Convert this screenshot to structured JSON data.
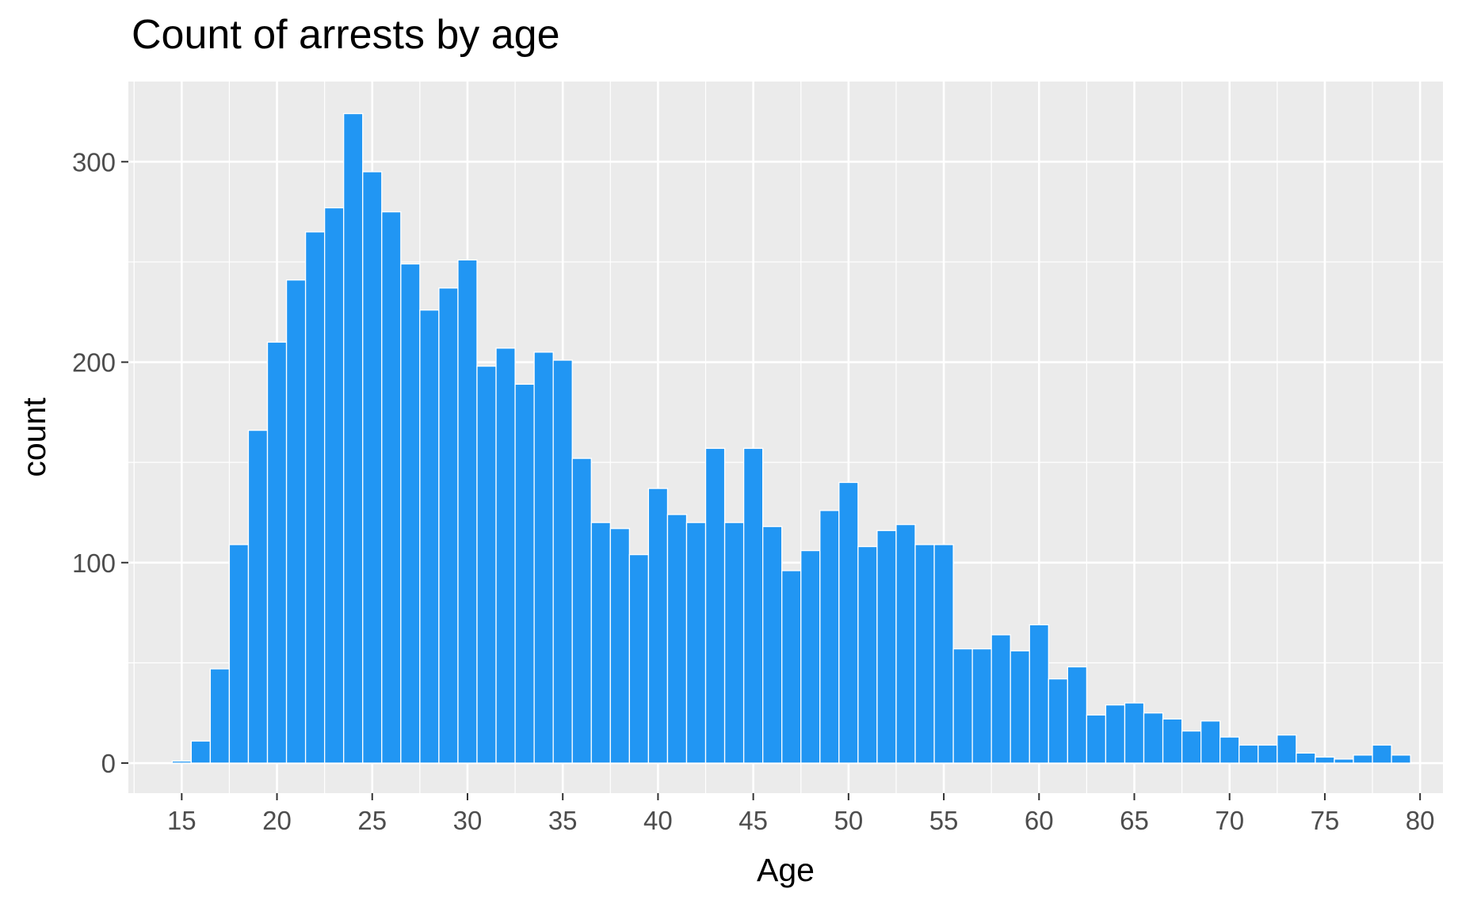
{
  "chart_data": {
    "type": "bar",
    "title": "Count of arrests by age",
    "xlabel": "Age",
    "ylabel": "count",
    "bar_color": "#2196F3",
    "panel_color": "#EBEBEB",
    "grid_color": "#FFFFFF",
    "grid": true,
    "xlim": [
      12.2,
      81.2
    ],
    "ylim": [
      -15,
      340
    ],
    "x_ticks": [
      15,
      20,
      25,
      30,
      35,
      40,
      45,
      50,
      55,
      60,
      65,
      70,
      75,
      80
    ],
    "y_ticks": [
      0,
      100,
      200,
      300
    ],
    "x": [
      15,
      16,
      17,
      18,
      19,
      20,
      21,
      22,
      23,
      24,
      25,
      26,
      27,
      28,
      29,
      30,
      31,
      32,
      33,
      34,
      35,
      36,
      37,
      38,
      39,
      40,
      41,
      42,
      43,
      44,
      45,
      46,
      47,
      48,
      49,
      50,
      51,
      52,
      53,
      54,
      55,
      56,
      57,
      58,
      59,
      60,
      61,
      62,
      63,
      64,
      65,
      66,
      67,
      68,
      69,
      70,
      71,
      72,
      73,
      74,
      75,
      76,
      77,
      78,
      79
    ],
    "values": [
      1,
      11,
      47,
      109,
      166,
      210,
      241,
      265,
      277,
      324,
      295,
      275,
      249,
      226,
      237,
      251,
      198,
      207,
      189,
      205,
      201,
      152,
      120,
      117,
      104,
      137,
      124,
      120,
      157,
      120,
      157,
      118,
      96,
      106,
      126,
      140,
      108,
      116,
      119,
      109,
      109,
      57,
      57,
      64,
      56,
      69,
      42,
      48,
      24,
      29,
      30,
      25,
      22,
      16,
      21,
      13,
      9,
      9,
      14,
      5,
      3,
      2,
      4,
      9,
      4
    ]
  }
}
